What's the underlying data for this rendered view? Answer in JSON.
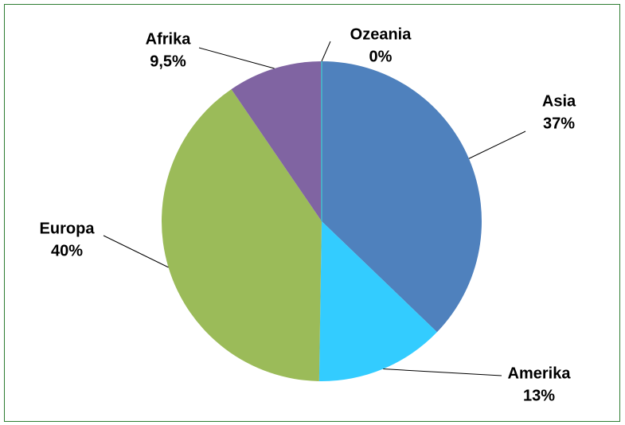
{
  "chart_data": {
    "type": "pie",
    "categories": [
      "Asia",
      "Amerika",
      "Europa",
      "Afrika",
      "Ozeania"
    ],
    "values": [
      37,
      13,
      40,
      9.5,
      0
    ],
    "value_labels": [
      "37%",
      "13%",
      "40%",
      "9,5%",
      "0%"
    ],
    "colors": [
      "#4f81bd",
      "#33ccff",
      "#9bbb59",
      "#8064a2",
      "#4bacc6"
    ]
  }
}
